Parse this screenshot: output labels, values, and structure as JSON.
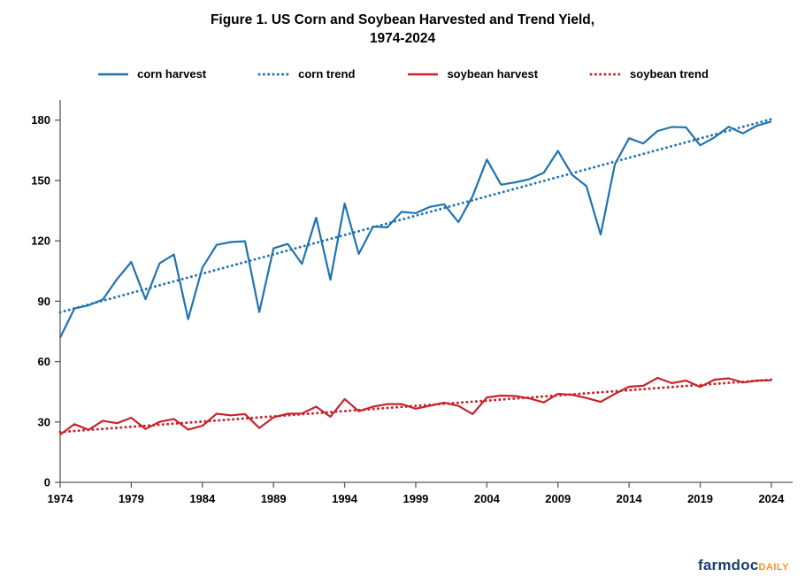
{
  "title": {
    "line1": "Figure 1. US Corn and Soybean Harvested and Trend Yield,",
    "line2": "1974-2024"
  },
  "footer": {
    "brand": "farmdoc",
    "suffix": "DAILY"
  },
  "colors": {
    "corn": "#2073B0",
    "soybean": "#C8232C",
    "axis": "#595959",
    "text": "#000000"
  },
  "chart_data": {
    "type": "line",
    "title": "Figure 1. US Corn and Soybean Harvested and Trend Yield, 1974-2024",
    "xlabel": "",
    "ylabel": "",
    "grid": false,
    "legend_position": "top",
    "xlim": [
      1974,
      2025
    ],
    "ylim": [
      0,
      190
    ],
    "yticks": [
      0,
      30,
      60,
      90,
      120,
      150,
      180
    ],
    "xticks": [
      1974,
      1979,
      1984,
      1989,
      1994,
      1999,
      2004,
      2009,
      2014,
      2019,
      2024
    ],
    "x": [
      1974,
      1975,
      1976,
      1977,
      1978,
      1979,
      1980,
      1981,
      1982,
      1983,
      1984,
      1985,
      1986,
      1987,
      1988,
      1989,
      1990,
      1991,
      1992,
      1993,
      1994,
      1995,
      1996,
      1997,
      1998,
      1999,
      2000,
      2001,
      2002,
      2003,
      2004,
      2005,
      2006,
      2007,
      2008,
      2009,
      2010,
      2011,
      2012,
      2013,
      2014,
      2015,
      2016,
      2017,
      2018,
      2019,
      2020,
      2021,
      2022,
      2023,
      2024
    ],
    "series": [
      {
        "name": "corn harvest",
        "color": "#2073B0",
        "style": "solid",
        "values": [
          71.9,
          86.4,
          88.0,
          90.8,
          101.0,
          109.5,
          91.0,
          108.9,
          113.2,
          81.1,
          106.7,
          118.0,
          119.4,
          119.8,
          84.6,
          116.3,
          118.5,
          108.6,
          131.5,
          100.7,
          138.6,
          113.5,
          127.1,
          126.7,
          134.4,
          133.8,
          136.9,
          138.2,
          129.3,
          142.2,
          160.4,
          147.9,
          149.1,
          150.7,
          153.9,
          164.7,
          152.8,
          147.2,
          123.1,
          158.1,
          171.0,
          168.4,
          174.6,
          176.6,
          176.4,
          167.5,
          171.4,
          176.7,
          173.4,
          177.3,
          179.3
        ]
      },
      {
        "name": "corn trend",
        "color": "#2073B0",
        "style": "dotted",
        "trend": {
          "x0": 1974,
          "y0": 84.5,
          "x1": 2024,
          "y1": 180.5
        }
      },
      {
        "name": "soybean harvest",
        "color": "#C8232C",
        "style": "solid",
        "values": [
          23.7,
          28.9,
          26.1,
          30.6,
          29.4,
          32.1,
          26.5,
          30.1,
          31.5,
          26.2,
          28.1,
          34.1,
          33.3,
          33.9,
          27.0,
          32.3,
          34.1,
          34.2,
          37.6,
          32.6,
          41.4,
          35.3,
          37.6,
          38.9,
          38.9,
          36.6,
          38.1,
          39.6,
          38.0,
          33.9,
          42.2,
          43.1,
          42.9,
          41.7,
          39.7,
          44.0,
          43.5,
          41.9,
          40.0,
          44.0,
          47.5,
          48.0,
          51.9,
          49.3,
          50.6,
          47.4,
          51.0,
          51.7,
          49.6,
          50.6,
          50.7
        ]
      },
      {
        "name": "soybean trend",
        "color": "#C8232C",
        "style": "dotted",
        "trend": {
          "x0": 1974,
          "y0": 25.0,
          "x1": 2024,
          "y1": 51.0
        }
      }
    ]
  }
}
